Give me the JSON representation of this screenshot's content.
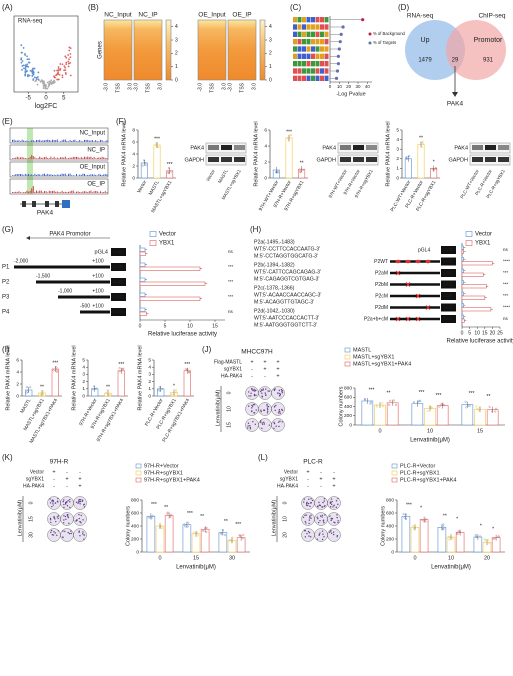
{
  "chart_data": {
    "type": "multi-panel",
    "colors": [
      "#5b8fd0",
      "#f2c84b",
      "#e06060"
    ],
    "A": {
      "label": "(A)",
      "title": "RNA-seq",
      "xlabel": "log2FC",
      "xlim": [
        -9,
        9
      ],
      "xticks": [
        -5,
        0,
        5
      ]
    },
    "B": {
      "label": "(B)",
      "heatmaps": [
        "NC_Input",
        "NC_IP",
        "OE_Input",
        "OE_IP"
      ],
      "ylabel": "Genes",
      "xticks": [
        "-3.0",
        "TSS",
        "3.0"
      ],
      "colorbar_lim": [
        0,
        4.5
      ],
      "colorbar_ticks": [
        0,
        1,
        2,
        3,
        4
      ]
    },
    "C": {
      "label": "(C)",
      "xlabel": "-Log Pvalue",
      "xlim": [
        0,
        45
      ],
      "xticks": [
        0,
        10,
        20,
        30,
        40
      ],
      "values": [
        35,
        14,
        12,
        11,
        10,
        9,
        9,
        8,
        7
      ],
      "legend": [
        "% of Background",
        "% of Targets"
      ]
    },
    "D": {
      "label": "(D)",
      "sets": [
        "RNA-seq",
        "ChIP-seq"
      ],
      "subsets": [
        "Up",
        "Promotor"
      ],
      "counts": [
        1479,
        29,
        931
      ],
      "gene": "PAK4"
    },
    "E": {
      "label": "(E)",
      "tracks": [
        "NC_Input",
        "NC_IP",
        "OE_Input",
        "OE_IP"
      ],
      "gene": "PAK4"
    },
    "F": {
      "label": "(F)",
      "ylabel": "Relative PAK4 mRNA level",
      "blot": [
        "PAK4",
        "GAPDH"
      ],
      "charts": [
        {
          "categories": [
            "Vector",
            "MASTL",
            "MASTL+sgYBX1"
          ],
          "values": [
            2.5,
            5.5,
            1.2
          ],
          "stars": [
            "***",
            "***"
          ],
          "ylim": [
            0,
            8
          ],
          "yticks": [
            0,
            2,
            4,
            6,
            8
          ]
        },
        {
          "categories": [
            "97H-WT+Vector",
            "97H-R+Vector",
            "97H-R+sgYBX1"
          ],
          "values": [
            1,
            5,
            1.1
          ],
          "stars": [
            "***",
            "**"
          ],
          "ylim": [
            0,
            6
          ],
          "yticks": [
            0,
            2,
            4,
            6
          ]
        },
        {
          "categories": [
            "PLC-WT+Vector",
            "PLC-R+Vector",
            "PLC-R+sgYBX1"
          ],
          "values": [
            2,
            3.5,
            1
          ],
          "stars": [
            "**",
            "*"
          ],
          "ylim": [
            0,
            5
          ],
          "yticks": [
            0,
            1,
            2,
            3,
            4,
            5
          ]
        }
      ]
    },
    "G": {
      "label": "(G)",
      "promoter": "PAK4 Promotor",
      "luc": "LUC",
      "rows": [
        "pGL4",
        "P1",
        "P2",
        "P3",
        "P4"
      ],
      "starts": [
        "-2,000",
        "-1,500",
        "-1,000",
        "-500"
      ],
      "end": "+100",
      "series": [
        {
          "name": "Vector",
          "color": "#5b8fd0",
          "values": [
            1,
            1,
            1,
            1,
            1
          ]
        },
        {
          "name": "YBX1",
          "color": "#e06060",
          "values": [
            1.1,
            12,
            13,
            12,
            1.3
          ]
        }
      ],
      "stars": [
        "ns",
        "***",
        "***",
        "***",
        "ns"
      ],
      "xlim": [
        0,
        17
      ],
      "xticks": [
        0,
        5,
        10,
        15
      ],
      "xlabel": "Relative luciferase activity"
    },
    "H": {
      "label": "(H)",
      "luc": "LUC",
      "sites": [
        {
          "name": "P2a(-1495,-1483)",
          "wt": "WT:5'-CCTTCCACCAATG-3'",
          "m": "M:5'-CCTAGGTGGCATG-3'"
        },
        {
          "name": "P2b(-1394,-1382)",
          "wt": "WT:5'-CATTCCAGCAGAG-3'",
          "m": "M:5'-CAGAGGTCGTGAG-3'"
        },
        {
          "name": "P2c(-1378,-1366)",
          "wt": "WT:5'-ACAACCAACCAGC-3'",
          "m": "M:5'-ACAGGTTGTAGC-3'"
        },
        {
          "name": "P2d(-1042,-1030)",
          "wt": "WT:5'-AATCCCACCACTT-3'",
          "m": "M:5'-AATGGGTGGTCTT-3'"
        }
      ],
      "rows": [
        "pGL4",
        "P2WT",
        "P2aM",
        "P2bM",
        "P2cM",
        "P2dM",
        "P2a+b+cM"
      ],
      "series": [
        {
          "name": "Vector",
          "color": "#5b8fd0",
          "values": [
            1,
            1,
            1,
            1,
            1,
            1,
            1
          ]
        },
        {
          "name": "YBX1",
          "color": "#e06060",
          "values": [
            1.1,
            20,
            14,
            16,
            15,
            19,
            1.5
          ]
        }
      ],
      "stars": [
        "ns",
        "****",
        "***",
        "***",
        "***",
        "****",
        "ns"
      ],
      "xlim": [
        0,
        25
      ],
      "xticks": [
        0,
        5,
        10,
        15,
        20,
        25
      ],
      "xlabel": "Relative luciferase activity"
    },
    "I": {
      "label": "(I)",
      "ylabel": "Relative PAK4 mRNA level",
      "charts": [
        {
          "categories": [
            "MASTL",
            "MASTL+sgYBX1",
            "MASTL+sgYBX1+PAK4"
          ],
          "values": [
            1,
            0.5,
            4.5
          ],
          "stars": [
            "**",
            "***"
          ],
          "ylim": [
            0,
            6
          ],
          "yticks": [
            0,
            2,
            4,
            6
          ]
        },
        {
          "categories": [
            "97H-R+Vector",
            "97H-R+sgYBX1",
            "97H-R+sgYBX1+PAK4"
          ],
          "values": [
            1,
            0.4,
            3.5
          ],
          "stars": [
            "**",
            "***"
          ],
          "ylim": [
            0,
            5
          ],
          "yticks": [
            0,
            1,
            2,
            3,
            4,
            5
          ]
        },
        {
          "categories": [
            "PLC-R+Vector",
            "PLC-R+sgYBX1",
            "PLC-R+sgYBX1+PAK4"
          ],
          "values": [
            1,
            0.5,
            3.5
          ],
          "stars": [
            "*",
            "***"
          ],
          "ylim": [
            0,
            5
          ],
          "yticks": [
            0,
            1,
            2,
            3,
            4,
            5
          ]
        }
      ]
    },
    "J": {
      "label": "(J)",
      "title": "MHCC97H",
      "conditions": [
        "Flag-MASTL",
        "sgYBX1",
        "HA-PAK4"
      ],
      "signs": [
        [
          "+",
          "+",
          "+"
        ],
        [
          "-",
          "+",
          "+"
        ],
        [
          "-",
          "-",
          "+"
        ]
      ],
      "plate_label": "Lenvatinib(μM)",
      "ylabel": "Colony numbers",
      "xlabel": "Lenvatinib(μM)",
      "categories": [
        "0",
        "10",
        "15"
      ],
      "series": [
        {
          "name": "MASTL",
          "color": "#5b8fd0",
          "values": [
            520,
            460,
            440
          ]
        },
        {
          "name": "MASTL+sgYBX1",
          "color": "#f2c84b",
          "values": [
            430,
            360,
            340
          ]
        },
        {
          "name": "MASTL+sgYBX1+PAK4",
          "color": "#e06060",
          "values": [
            480,
            420,
            330
          ]
        }
      ],
      "stars": [
        "***",
        "**",
        "***",
        "***",
        "***",
        "**"
      ],
      "ylim": [
        0,
        800
      ],
      "yticks": [
        0,
        200,
        400,
        600,
        800
      ]
    },
    "K": {
      "label": "(K)",
      "title": "97H-R",
      "conditions": [
        "Vector",
        "sgYBX1",
        "HA-PAK4"
      ],
      "signs": [
        [
          "+",
          "-",
          "-"
        ],
        [
          "-",
          "+",
          "+"
        ],
        [
          "-",
          "-",
          "+"
        ]
      ],
      "plate_label": "Lenvatinib(μM)",
      "ylabel": "Colony numbers",
      "xlabel": "Lenvatinib(μM)",
      "categories": [
        "0",
        "15",
        "30"
      ],
      "series": [
        {
          "name": "97H-R+Vector",
          "color": "#5b8fd0",
          "values": [
            550,
            420,
            300
          ]
        },
        {
          "name": "97H-R+sgYBX1",
          "color": "#f2c84b",
          "values": [
            400,
            280,
            180
          ]
        },
        {
          "name": "97H-R+sgYBX1+PAK4",
          "color": "#e06060",
          "values": [
            560,
            350,
            220
          ]
        }
      ],
      "stars": [
        "***",
        "**",
        "***",
        "**",
        "**",
        "***"
      ],
      "ylim": [
        0,
        800
      ],
      "yticks": [
        0,
        200,
        400,
        600,
        800
      ]
    },
    "L": {
      "label": "(L)",
      "title": "PLC-R",
      "conditions": [
        "Vector",
        "sgYBX1",
        "HA-PAK4"
      ],
      "signs": [
        [
          "+",
          "-",
          "-"
        ],
        [
          "-",
          "+",
          "+"
        ],
        [
          "-",
          "-",
          "+"
        ]
      ],
      "plate_label": "Lenvatinib(μM)",
      "ylabel": "Colony numbers",
      "xlabel": "Lenvatinib(μM)",
      "categories": [
        "0",
        "10",
        "20"
      ],
      "series": [
        {
          "name": "PLC-R+Vector",
          "color": "#5b8fd0",
          "values": [
            550,
            380,
            230
          ]
        },
        {
          "name": "PLC-R+sgYBX1",
          "color": "#f2c84b",
          "values": [
            380,
            230,
            150
          ]
        },
        {
          "name": "PLC-R+sgYBX1+PAK4",
          "color": "#e06060",
          "values": [
            500,
            300,
            220
          ]
        }
      ],
      "stars": [
        "***",
        "*",
        "**",
        "*",
        "*",
        "*"
      ],
      "ylim": [
        0,
        800
      ],
      "yticks": [
        0,
        200,
        400,
        600,
        800
      ]
    }
  }
}
